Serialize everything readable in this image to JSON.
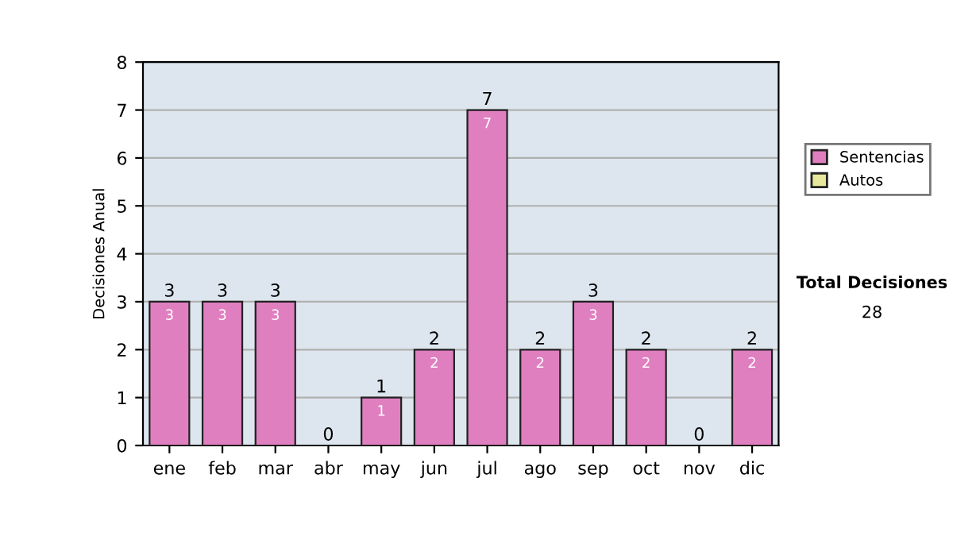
{
  "chart_data": {
    "type": "bar",
    "stacked": true,
    "ylabel": "Decisiones Anual",
    "categories": [
      "ene",
      "feb",
      "mar",
      "abr",
      "may",
      "jun",
      "jul",
      "ago",
      "sep",
      "oct",
      "nov",
      "dic"
    ],
    "series": [
      {
        "name": "Sentencias",
        "color": "#e07fc0",
        "values": [
          3,
          3,
          3,
          0,
          1,
          2,
          7,
          2,
          3,
          2,
          0,
          2
        ],
        "value_labels": [
          "3",
          "3",
          "3",
          null,
          "1",
          "2",
          "7",
          "2",
          "3",
          "2",
          null,
          "2"
        ]
      },
      {
        "name": "Autos",
        "color": "#e8e89c",
        "values": [
          0,
          0,
          0,
          0,
          0,
          0,
          0,
          0,
          0,
          0,
          0,
          0
        ]
      }
    ],
    "totals": [
      "3",
      "3",
      "3",
      "0",
      "1",
      "2",
      "7",
      "2",
      "3",
      "2",
      "0",
      "2"
    ],
    "ylim": [
      0,
      8
    ],
    "yticks": [
      0,
      1,
      2,
      3,
      4,
      5,
      6,
      7,
      8
    ],
    "grid": "y",
    "legend": "right",
    "annotations": [
      "Total Decisiones",
      "28"
    ]
  }
}
